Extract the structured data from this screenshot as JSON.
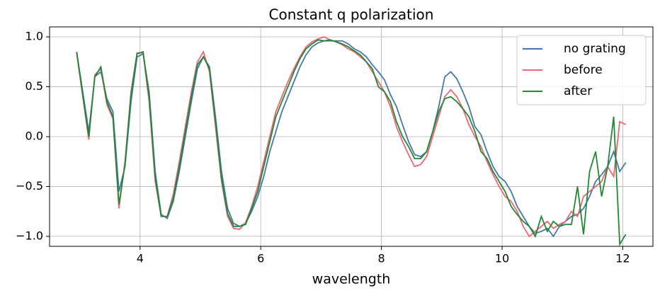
{
  "chart_data": {
    "type": "line",
    "title": "Constant q polarization",
    "xlabel": "wavelength",
    "x": [
      2.95,
      3.05,
      3.15,
      3.25,
      3.35,
      3.45,
      3.55,
      3.65,
      3.75,
      3.85,
      3.95,
      4.05,
      4.15,
      4.25,
      4.35,
      4.45,
      4.55,
      4.65,
      4.75,
      4.85,
      4.95,
      5.05,
      5.15,
      5.25,
      5.35,
      5.45,
      5.55,
      5.65,
      5.75,
      5.85,
      5.95,
      6.05,
      6.15,
      6.25,
      6.35,
      6.45,
      6.55,
      6.65,
      6.75,
      6.85,
      6.95,
      7.05,
      7.15,
      7.25,
      7.35,
      7.45,
      7.55,
      7.65,
      7.75,
      7.85,
      7.95,
      8.05,
      8.15,
      8.25,
      8.35,
      8.45,
      8.55,
      8.65,
      8.75,
      8.85,
      8.95,
      9.05,
      9.15,
      9.25,
      9.35,
      9.45,
      9.55,
      9.65,
      9.75,
      9.85,
      9.95,
      10.05,
      10.15,
      10.25,
      10.35,
      10.45,
      10.55,
      10.65,
      10.75,
      10.85,
      10.95,
      11.05,
      11.15,
      11.25,
      11.35,
      11.45,
      11.55,
      11.65,
      11.75,
      11.85,
      11.95,
      12.05
    ],
    "series": [
      {
        "name": "no grating",
        "color": "#4477aa",
        "values": [
          0.84,
          0.45,
          0.05,
          0.6,
          0.65,
          0.38,
          0.25,
          -0.55,
          -0.3,
          0.35,
          0.8,
          0.83,
          0.45,
          -0.35,
          -0.78,
          -0.82,
          -0.65,
          -0.35,
          0.0,
          0.35,
          0.68,
          0.8,
          0.7,
          0.2,
          -0.35,
          -0.72,
          -0.87,
          -0.9,
          -0.87,
          -0.75,
          -0.6,
          -0.4,
          -0.15,
          0.05,
          0.25,
          0.4,
          0.55,
          0.7,
          0.82,
          0.9,
          0.94,
          0.96,
          0.96,
          0.96,
          0.96,
          0.93,
          0.88,
          0.85,
          0.8,
          0.72,
          0.65,
          0.57,
          0.42,
          0.3,
          0.12,
          -0.05,
          -0.18,
          -0.2,
          -0.15,
          0.05,
          0.3,
          0.6,
          0.65,
          0.58,
          0.45,
          0.3,
          0.1,
          0.02,
          -0.15,
          -0.3,
          -0.4,
          -0.45,
          -0.55,
          -0.7,
          -0.8,
          -0.9,
          -0.97,
          -0.95,
          -0.92,
          -1.0,
          -0.9,
          -0.85,
          -0.8,
          -0.78,
          -0.72,
          -0.6,
          -0.45,
          -0.38,
          -0.3,
          -0.15,
          -0.35,
          -0.26
        ]
      },
      {
        "name": "before",
        "color": "#ee6677",
        "values": [
          0.83,
          0.4,
          -0.03,
          0.62,
          0.68,
          0.32,
          0.18,
          -0.72,
          -0.25,
          0.45,
          0.84,
          0.84,
          0.35,
          -0.45,
          -0.8,
          -0.8,
          -0.58,
          -0.25,
          0.1,
          0.45,
          0.75,
          0.85,
          0.65,
          0.1,
          -0.45,
          -0.8,
          -0.92,
          -0.93,
          -0.86,
          -0.7,
          -0.5,
          -0.25,
          0.0,
          0.25,
          0.4,
          0.55,
          0.68,
          0.8,
          0.9,
          0.95,
          0.98,
          1.0,
          0.97,
          0.95,
          0.92,
          0.88,
          0.85,
          0.8,
          0.75,
          0.65,
          0.55,
          0.45,
          0.3,
          0.1,
          -0.05,
          -0.18,
          -0.3,
          -0.28,
          -0.2,
          0.0,
          0.2,
          0.4,
          0.47,
          0.4,
          0.28,
          0.12,
          0.0,
          -0.1,
          -0.25,
          -0.38,
          -0.5,
          -0.6,
          -0.65,
          -0.75,
          -0.9,
          -1.0,
          -0.95,
          -0.9,
          -0.85,
          -0.92,
          -0.88,
          -0.85,
          -0.75,
          -0.8,
          -0.6,
          -0.55,
          -0.5,
          -0.45,
          -0.3,
          -0.4,
          0.15,
          0.12
        ]
      },
      {
        "name": "after",
        "color": "#228833",
        "values": [
          0.85,
          0.42,
          0.0,
          0.6,
          0.7,
          0.35,
          0.2,
          -0.68,
          -0.28,
          0.42,
          0.83,
          0.85,
          0.4,
          -0.4,
          -0.8,
          -0.8,
          -0.62,
          -0.3,
          0.05,
          0.4,
          0.72,
          0.8,
          0.68,
          0.15,
          -0.42,
          -0.77,
          -0.9,
          -0.9,
          -0.88,
          -0.72,
          -0.55,
          -0.3,
          -0.05,
          0.2,
          0.35,
          0.5,
          0.65,
          0.78,
          0.88,
          0.93,
          0.97,
          0.96,
          0.97,
          0.95,
          0.93,
          0.9,
          0.86,
          0.82,
          0.75,
          0.68,
          0.5,
          0.45,
          0.35,
          0.15,
          0.0,
          -0.1,
          -0.22,
          -0.22,
          -0.15,
          0.05,
          0.25,
          0.38,
          0.4,
          0.35,
          0.28,
          0.2,
          0.05,
          -0.15,
          -0.22,
          -0.35,
          -0.45,
          -0.55,
          -0.7,
          -0.78,
          -0.85,
          -0.9,
          -1.0,
          -0.8,
          -0.95,
          -0.85,
          -0.9,
          -0.88,
          -0.88,
          -0.5,
          -0.98,
          -0.35,
          -0.15,
          -0.6,
          -0.3,
          0.2,
          -1.08,
          -0.98
        ]
      }
    ],
    "xlim": [
      2.5,
      12.5
    ],
    "ylim": [
      -1.1,
      1.1
    ],
    "xticks": [
      4,
      6,
      8,
      10,
      12
    ],
    "yticks": [
      {
        "value": 1,
        "label": "1.0"
      },
      0.5,
      {
        "value": 0,
        "label": "0.0"
      },
      {
        "value": -0.5,
        "label": "−0.5"
      },
      {
        "value": -1,
        "label": "−1.0"
      }
    ],
    "grid": true,
    "legend": "upper right"
  }
}
